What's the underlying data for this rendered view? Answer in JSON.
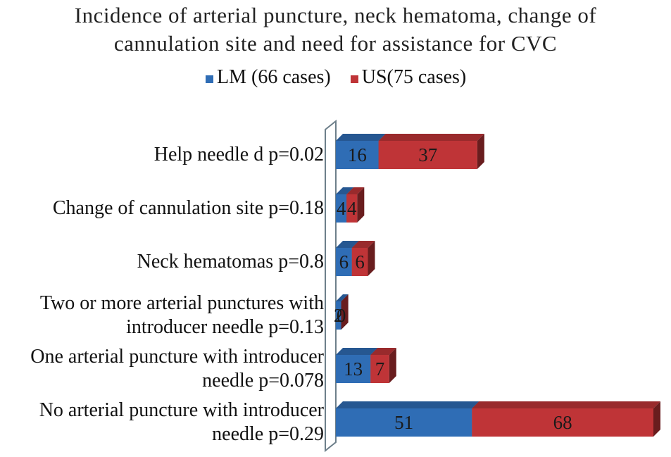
{
  "chart_data": {
    "type": "bar",
    "orientation": "horizontal",
    "stacked": true,
    "title": "Incidence of arterial puncture, neck hematoma, change of cannulation site and need for assistance for CVC",
    "categories": [
      "Help needle d p=0.02",
      "Change of cannulation site p=0.18",
      "Neck hematomas p=0.8",
      "Two or more arterial punctures with introducer needle p=0.13",
      "One arterial puncture with introducer needle p=0.078",
      "No arterial puncture with introducer needle p=0.29"
    ],
    "series": [
      {
        "name": "LM (66 cases)",
        "color": "#2f6db5",
        "values": [
          16,
          4,
          6,
          2,
          13,
          51
        ]
      },
      {
        "name": "US(75 cases)",
        "color": "#bf3437",
        "values": [
          37,
          4,
          6,
          0,
          7,
          68
        ]
      }
    ]
  }
}
